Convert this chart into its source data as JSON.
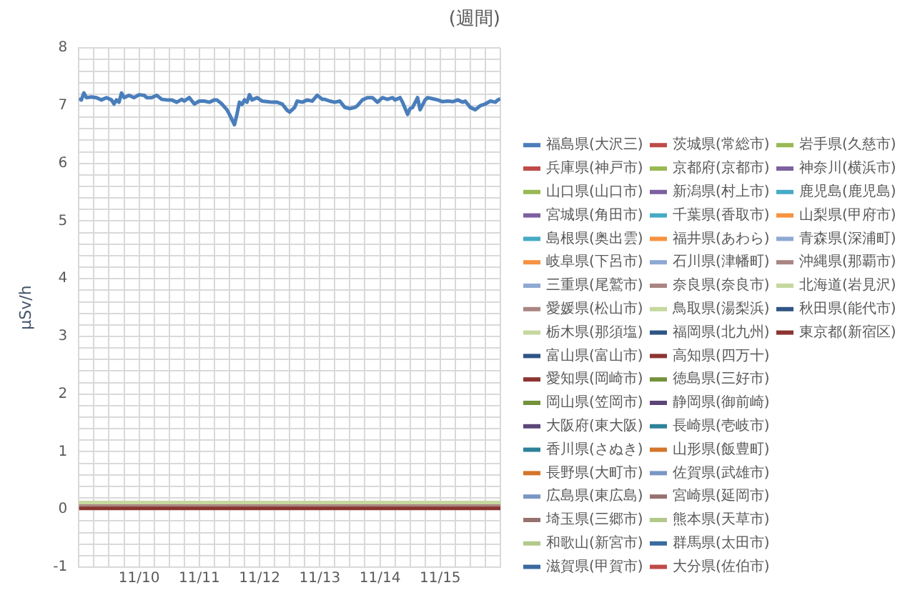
{
  "chart_data": {
    "type": "line",
    "title": "(週間)",
    "ylabel": "μSv/h",
    "xlim": [
      "--11-09T00:00",
      "--11-16T00:00"
    ],
    "xticks": [
      {
        "value": "--11-09T00:00",
        "label": null
      },
      {
        "value": "--11-09T06:00",
        "label": null
      },
      {
        "value": "--11-09T12:00",
        "label": null
      },
      {
        "value": "--11-09T18:00",
        "label": null
      },
      {
        "value": "--11-10",
        "label": "11/10"
      },
      {
        "value": "--11-10T06:00",
        "label": null
      },
      {
        "value": "--11-10T12:00",
        "label": null
      },
      {
        "value": "--11-10T18:00",
        "label": null
      },
      {
        "value": "--11-11",
        "label": "11/11"
      },
      {
        "value": "--11-11T06:00",
        "label": null
      },
      {
        "value": "--11-11T12:00",
        "label": null
      },
      {
        "value": "--11-11T18:00",
        "label": null
      },
      {
        "value": "--11-12",
        "label": "11/12"
      },
      {
        "value": "--11-12T06:00",
        "label": null
      },
      {
        "value": "--11-12T12:00",
        "label": null
      },
      {
        "value": "--11-12T18:00",
        "label": null
      },
      {
        "value": "--11-13",
        "label": "11/13"
      },
      {
        "value": "--11-13T06:00",
        "label": null
      },
      {
        "value": "--11-13T12:00",
        "label": null
      },
      {
        "value": "--11-13T18:00",
        "label": null
      },
      {
        "value": "--11-14",
        "label": "11/14"
      },
      {
        "value": "--11-14T06:00",
        "label": null
      },
      {
        "value": "--11-14T12:00",
        "label": null
      },
      {
        "value": "--11-14T18:00",
        "label": null
      },
      {
        "value": "--11-15",
        "label": "11/15"
      },
      {
        "value": "--11-15T06:00",
        "label": null
      },
      {
        "value": "--11-15T12:00",
        "label": null
      },
      {
        "value": "--11-15T18:00",
        "label": null
      },
      {
        "value": "--11-16T00:00",
        "label": null
      }
    ],
    "ylim": [
      -1,
      8
    ],
    "yticks": [
      -1,
      {
        "value": -0.8,
        "label": null
      },
      {
        "value": -0.6,
        "label": null
      },
      {
        "value": -0.4,
        "label": null
      },
      {
        "value": -0.2,
        "label": null
      },
      0,
      {
        "value": 0.2,
        "label": null
      },
      {
        "value": 0.4,
        "label": null
      },
      {
        "value": 0.6,
        "label": null
      },
      {
        "value": 0.8,
        "label": null
      },
      1,
      {
        "value": 1.2,
        "label": null
      },
      {
        "value": 1.4,
        "label": null
      },
      {
        "value": 1.6,
        "label": null
      },
      {
        "value": 1.8,
        "label": null
      },
      2,
      {
        "value": 2.2,
        "label": null
      },
      {
        "value": 2.4,
        "label": null
      },
      {
        "value": 2.6,
        "label": null
      },
      {
        "value": 2.8,
        "label": null
      },
      3,
      {
        "value": 3.2,
        "label": null
      },
      {
        "value": 3.4,
        "label": null
      },
      {
        "value": 3.6,
        "label": null
      },
      {
        "value": 3.8,
        "label": null
      },
      4,
      {
        "value": 4.2,
        "label": null
      },
      {
        "value": 4.4,
        "label": null
      },
      {
        "value": 4.6,
        "label": null
      },
      {
        "value": 4.8,
        "label": null
      },
      5,
      {
        "value": 5.2,
        "label": null
      },
      {
        "value": 5.4,
        "label": null
      },
      {
        "value": 5.6,
        "label": null
      },
      {
        "value": 5.8,
        "label": null
      },
      6,
      {
        "value": 6.2,
        "label": null
      },
      {
        "value": 6.4,
        "label": null
      },
      {
        "value": 6.6,
        "label": null
      },
      {
        "value": 6.8,
        "label": null
      },
      7,
      {
        "value": 7.2,
        "label": null
      },
      {
        "value": 7.4,
        "label": null
      },
      {
        "value": 7.6,
        "label": null
      },
      {
        "value": 7.8,
        "label": null
      },
      8
    ],
    "grid": true,
    "legend": "right",
    "series": [
      {
        "name": "福島県(大沢三)",
        "color": "#4a7ebb",
        "x": [
          "--11-09T00:00",
          "--11-09T01:00",
          "--11-09T02:00",
          "--11-09T03:00",
          "--11-09T05:00",
          "--11-09T07:00",
          "--11-09T09:00",
          "--11-09T11:00",
          "--11-09T13:00",
          "--11-09T14:00",
          "--11-09T15:00",
          "--11-09T16:00",
          "--11-09T17:00",
          "--11-09T18:00",
          "--11-09T20:00",
          "--11-09T22:00",
          "--11-10T00:00",
          "--11-10T02:00",
          "--11-10T03:00",
          "--11-10T05:00",
          "--11-10T07:00",
          "--11-10T09:00",
          "--11-10T11:00",
          "--11-10T13:00",
          "--11-10T15:00",
          "--11-10T17:00",
          "--11-10T18:00",
          "--11-10T20:00",
          "--11-10T22:00",
          "--11-11T00:00",
          "--11-11T02:00",
          "--11-11T04:00",
          "--11-11T06:00",
          "--11-11T07:00",
          "--11-11T09:00",
          "--11-11T11:00",
          "--11-11T12:00",
          "--11-11T14:00",
          "--11-11T15:00",
          "--11-11T16:00",
          "--11-11T17:00",
          "--11-11T18:00",
          "--11-11T19:00",
          "--11-11T20:00",
          "--11-11T21:00",
          "--11-11T23:00",
          "--11-12T01:00",
          "--11-12T03:00",
          "--11-12T05:00",
          "--11-12T07:00",
          "--11-12T09:00",
          "--11-12T11:00",
          "--11-12T12:00",
          "--11-12T14:00",
          "--11-12T15:00",
          "--11-12T17:00",
          "--11-12T19:00",
          "--11-12T21:00",
          "--11-12T23:00",
          "--11-13T01:00",
          "--11-13T02:00",
          "--11-13T04:00",
          "--11-13T06:00",
          "--11-13T08:00",
          "--11-13T10:00",
          "--11-13T12:00",
          "--11-13T14:00",
          "--11-13T15:00",
          "--11-13T17:00",
          "--11-13T19:00",
          "--11-13T21:00",
          "--11-13T23:00",
          "--11-14T01:00",
          "--11-14T03:00",
          "--11-14T05:00",
          "--11-14T06:00",
          "--11-14T08:00",
          "--11-14T09:00",
          "--11-14T11:00",
          "--11-14T12:00",
          "--11-14T13:00",
          "--11-14T15:00",
          "--11-14T16:00",
          "--11-14T18:00",
          "--11-14T19:00",
          "--11-14T21:00",
          "--11-14T23:00",
          "--11-15T01:00",
          "--11-15T03:00",
          "--11-15T05:00",
          "--11-15T07:00",
          "--11-15T09:00",
          "--11-15T10:00",
          "--11-15T12:00",
          "--11-15T14:00",
          "--11-15T16:00",
          "--11-15T18:00",
          "--11-15T20:00",
          "--11-15T22:00",
          "--11-15T23:00",
          "--11-16T00:00"
        ],
        "values": [
          7.12,
          7.1,
          7.22,
          7.14,
          7.15,
          7.14,
          7.1,
          7.14,
          7.1,
          7.03,
          7.1,
          7.06,
          7.22,
          7.14,
          7.18,
          7.14,
          7.19,
          7.18,
          7.14,
          7.14,
          7.18,
          7.11,
          7.1,
          7.1,
          7.06,
          7.11,
          7.08,
          7.14,
          7.03,
          7.08,
          7.08,
          7.06,
          7.1,
          7.1,
          7.03,
          6.93,
          6.85,
          6.67,
          6.85,
          7.06,
          7.02,
          7.1,
          7.06,
          7.19,
          7.1,
          7.14,
          7.08,
          7.07,
          7.06,
          7.06,
          7.03,
          6.92,
          6.89,
          6.97,
          7.08,
          7.06,
          7.1,
          7.08,
          7.18,
          7.11,
          7.11,
          7.08,
          7.06,
          7.08,
          6.97,
          6.95,
          6.97,
          7.0,
          7.1,
          7.14,
          7.14,
          7.06,
          7.14,
          7.11,
          7.14,
          7.1,
          7.14,
          7.06,
          6.85,
          6.95,
          6.97,
          7.14,
          6.93,
          7.1,
          7.14,
          7.12,
          7.1,
          7.07,
          7.08,
          7.07,
          7.1,
          7.06,
          7.08,
          6.97,
          6.93,
          7.0,
          7.03,
          7.08,
          7.06,
          7.1,
          7.12
        ]
      },
      {
        "name": "兵庫県(神戸市)",
        "color": "#be4b48"
      },
      {
        "name": "山口県(山口市)",
        "color": "#98b954"
      },
      {
        "name": "宮城県(角田市)",
        "color": "#7d60a0"
      },
      {
        "name": "島根県(奥出雲)",
        "color": "#46aac5"
      },
      {
        "name": "岐阜県(下呂市)",
        "color": "#f69240"
      },
      {
        "name": "三重県(尾鷲市)",
        "color": "#8ea9d3"
      },
      {
        "name": "愛媛県(松山市)",
        "color": "#a98683"
      },
      {
        "name": "栃木県(那須塩)",
        "color": "#c5d89e"
      },
      {
        "name": "富山県(富山市)",
        "color": "#2f5585"
      },
      {
        "name": "愛知県(岡崎市)",
        "color": "#8c3431"
      },
      {
        "name": "岡山県(笠岡市)",
        "color": "#74913c"
      },
      {
        "name": "大阪府(東大阪)",
        "color": "#5c4679"
      },
      {
        "name": "香川県(さぬき)",
        "color": "#2f8199"
      },
      {
        "name": "長野県(大町市)",
        "color": "#d4762b"
      },
      {
        "name": "広島県(東広島)",
        "color": "#7a97c4"
      },
      {
        "name": "埼玉県(三郷市)",
        "color": "#957270"
      },
      {
        "name": "和歌山(新宮市)",
        "color": "#b3c98a"
      },
      {
        "name": "滋賀県(甲賀市)",
        "color": "#3b6aa0"
      },
      {
        "name": "茨城県(常総市)",
        "color": "#be4b48"
      },
      {
        "name": "京都府(京都市)",
        "color": "#98b954"
      },
      {
        "name": "新潟県(村上市)",
        "color": "#7d60a0"
      },
      {
        "name": "千葉県(香取市)",
        "color": "#46aac5"
      },
      {
        "name": "福井県(あわら)",
        "color": "#f69240"
      },
      {
        "name": "石川県(津幡町)",
        "color": "#8ea9d3"
      },
      {
        "name": "奈良県(奈良市)",
        "color": "#a98683"
      },
      {
        "name": "鳥取県(湯梨浜)",
        "color": "#c5d89e"
      },
      {
        "name": "福岡県(北九州)",
        "color": "#2f5585"
      },
      {
        "name": "高知県(四万十)",
        "color": "#8c3431"
      },
      {
        "name": "徳島県(三好市)",
        "color": "#74913c"
      },
      {
        "name": "静岡県(御前崎)",
        "color": "#5c4679"
      },
      {
        "name": "長崎県(壱岐市)",
        "color": "#2f8199"
      },
      {
        "name": "山形県(飯豊町)",
        "color": "#d4762b"
      },
      {
        "name": "佐賀県(武雄市)",
        "color": "#7a97c4"
      },
      {
        "name": "宮崎県(延岡市)",
        "color": "#957270"
      },
      {
        "name": "熊本県(天草市)",
        "color": "#b3c98a"
      },
      {
        "name": "群馬県(太田市)",
        "color": "#3b6aa0"
      },
      {
        "name": "大分県(佐伯市)",
        "color": "#be4b48"
      },
      {
        "name": "岩手県(久慈市)",
        "color": "#98b954"
      },
      {
        "name": "神奈川(横浜市)",
        "color": "#7d60a0"
      },
      {
        "name": "鹿児島(鹿児島)",
        "color": "#46aac5"
      },
      {
        "name": "山梨県(甲府市)",
        "color": "#f69240"
      },
      {
        "name": "青森県(深浦町)",
        "color": "#8ea9d3"
      },
      {
        "name": "沖縄県(那覇市)",
        "color": "#a98683",
        "x": [
          "--11-09T00:00",
          "--11-16T00:00"
        ],
        "values": [
          0.07,
          0.07
        ]
      },
      {
        "name": "北海道(岩見沢)",
        "color": "#c5d89e",
        "x": [
          "--11-09T00:00",
          "--11-16T00:00"
        ],
        "values": [
          0.12,
          0.12
        ]
      },
      {
        "name": "秋田県(能代市)",
        "color": "#2f5585"
      },
      {
        "name": "東京都(新宿区)",
        "color": "#8c3431",
        "x": [
          "--11-09T00:00",
          "--11-16T00:00"
        ],
        "values": [
          0.02,
          0.02
        ]
      }
    ]
  }
}
